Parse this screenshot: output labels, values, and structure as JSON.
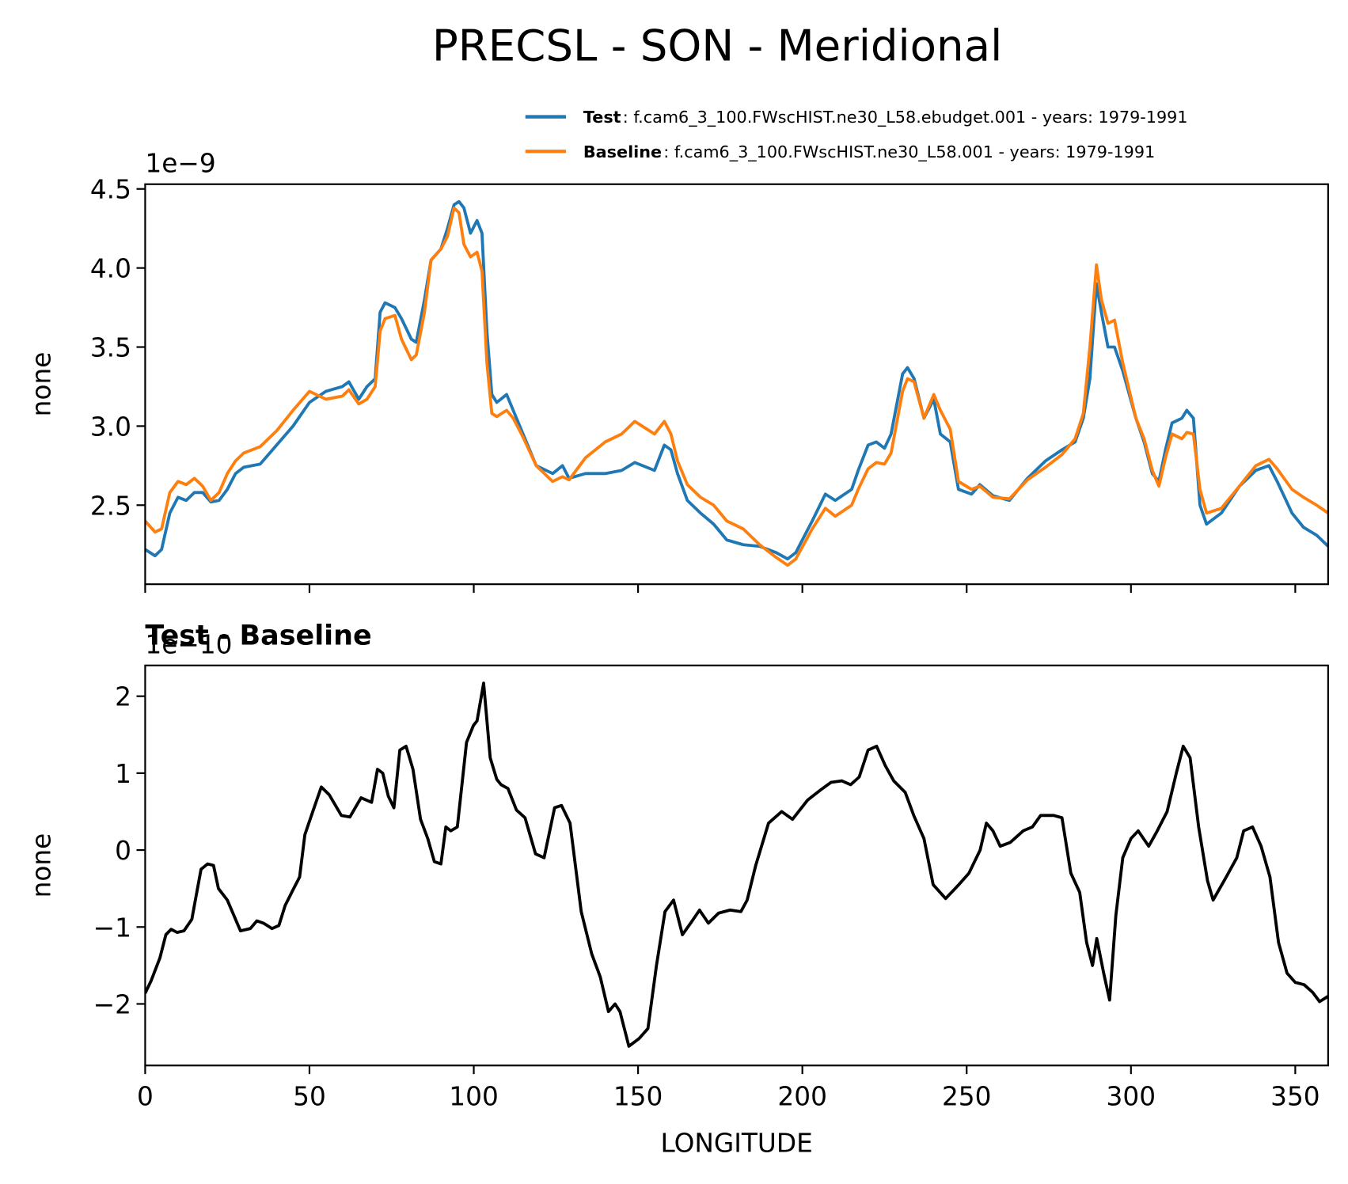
{
  "title": "PRECSL - SON - Meridional",
  "chart_data": [
    {
      "type": "line",
      "offset_text": "1e−9",
      "ylabel": "none",
      "xlim": [
        0,
        360
      ],
      "ylim": [
        2.0,
        4.53
      ],
      "xticks": [
        0,
        50,
        100,
        150,
        200,
        250,
        300,
        350
      ],
      "yticks": [
        2.5,
        {
          "value": 3,
          "label": "3.0"
        },
        3.5,
        {
          "value": 4,
          "label": "4.0"
        },
        4.5
      ],
      "x": [
        0,
        3,
        5,
        7.5,
        10,
        12.5,
        15,
        17.5,
        20,
        22.5,
        25,
        27.5,
        30,
        35,
        40,
        45,
        50,
        55,
        60,
        62,
        65,
        67.5,
        70,
        71.5,
        73,
        76,
        78,
        81,
        82.5,
        85,
        87,
        90,
        92,
        94,
        95.5,
        97,
        99,
        101,
        102.5,
        104,
        105.5,
        107,
        110,
        112,
        115,
        119,
        124,
        127,
        129,
        134,
        140,
        145,
        149,
        155,
        158,
        160,
        162,
        165,
        169,
        173,
        177,
        182,
        187,
        192,
        195.5,
        198,
        203,
        207,
        210,
        215,
        217,
        220,
        222.5,
        225,
        227,
        230.5,
        232,
        234,
        237,
        240,
        242,
        245,
        247.5,
        251.5,
        254,
        258,
        263,
        268.5,
        274,
        279,
        283,
        285.5,
        287.5,
        289.5,
        291,
        293,
        295,
        297.5,
        301.5,
        304,
        306.5,
        308.5,
        310.5,
        312.5,
        315.5,
        317,
        319,
        321,
        323,
        327.5,
        333,
        338,
        342,
        344.5,
        349,
        352.5,
        356.5,
        360
      ],
      "series": [
        {
          "name": "Test",
          "label": ": f.cam6_3_100.FWscHIST.ne30_L58.ebudget.001 - years: 1979-1991",
          "color": "#1f77b4",
          "values": [
            2.22,
            2.18,
            2.22,
            2.45,
            2.55,
            2.53,
            2.58,
            2.58,
            2.52,
            2.53,
            2.6,
            2.7,
            2.74,
            2.76,
            2.88,
            3.0,
            3.15,
            3.22,
            3.25,
            3.28,
            3.17,
            3.25,
            3.3,
            3.72,
            3.78,
            3.75,
            3.68,
            3.55,
            3.53,
            3.8,
            4.05,
            4.12,
            4.25,
            4.4,
            4.42,
            4.38,
            4.22,
            4.3,
            4.22,
            3.6,
            3.2,
            3.15,
            3.2,
            3.1,
            2.95,
            2.75,
            2.7,
            2.75,
            2.67,
            2.7,
            2.7,
            2.72,
            2.77,
            2.72,
            2.88,
            2.85,
            2.7,
            2.53,
            2.45,
            2.38,
            2.28,
            2.25,
            2.24,
            2.2,
            2.16,
            2.2,
            2.4,
            2.57,
            2.53,
            2.6,
            2.72,
            2.88,
            2.9,
            2.86,
            2.95,
            3.33,
            3.37,
            3.3,
            3.05,
            3.17,
            2.95,
            2.9,
            2.6,
            2.57,
            2.63,
            2.56,
            2.53,
            2.67,
            2.78,
            2.85,
            2.9,
            3.05,
            3.3,
            3.9,
            3.72,
            3.5,
            3.5,
            3.35,
            3.05,
            2.9,
            2.7,
            2.65,
            2.85,
            3.02,
            3.05,
            3.1,
            3.05,
            2.5,
            2.38,
            2.45,
            2.62,
            2.72,
            2.75,
            2.65,
            2.45,
            2.36,
            2.31,
            2.24
          ]
        },
        {
          "name": "Baseline",
          "label": ": f.cam6_3_100.FWscHIST.ne30_L58.001 - years: 1979-1991",
          "color": "#ff7f0e",
          "values": [
            2.4,
            2.33,
            2.35,
            2.58,
            2.65,
            2.63,
            2.67,
            2.62,
            2.53,
            2.58,
            2.7,
            2.78,
            2.83,
            2.87,
            2.97,
            3.1,
            3.22,
            3.17,
            3.19,
            3.23,
            3.14,
            3.17,
            3.25,
            3.6,
            3.68,
            3.7,
            3.55,
            3.42,
            3.45,
            3.72,
            4.05,
            4.12,
            4.2,
            4.38,
            4.35,
            4.15,
            4.07,
            4.1,
            3.98,
            3.4,
            3.08,
            3.06,
            3.1,
            3.05,
            2.93,
            2.75,
            2.65,
            2.68,
            2.66,
            2.8,
            2.9,
            2.95,
            3.03,
            2.95,
            3.03,
            2.95,
            2.78,
            2.63,
            2.55,
            2.5,
            2.4,
            2.35,
            2.25,
            2.17,
            2.12,
            2.16,
            2.35,
            2.48,
            2.43,
            2.5,
            2.6,
            2.73,
            2.77,
            2.76,
            2.83,
            3.22,
            3.3,
            3.28,
            3.05,
            3.2,
            3.1,
            2.98,
            2.65,
            2.6,
            2.62,
            2.55,
            2.54,
            2.66,
            2.74,
            2.82,
            2.92,
            3.08,
            3.5,
            4.02,
            3.8,
            3.65,
            3.67,
            3.4,
            3.05,
            2.92,
            2.72,
            2.62,
            2.8,
            2.95,
            2.92,
            2.96,
            2.95,
            2.6,
            2.45,
            2.48,
            2.62,
            2.75,
            2.79,
            2.73,
            2.6,
            2.55,
            2.5,
            2.45
          ]
        }
      ]
    },
    {
      "type": "line",
      "title": "Test - Baseline",
      "offset_text": "1e−10",
      "ylabel": "none",
      "xlabel": "LONGITUDE",
      "xlim": [
        0,
        360
      ],
      "ylim": [
        -2.8,
        2.4
      ],
      "xticks": [
        0,
        50,
        100,
        150,
        200,
        250,
        300,
        350
      ],
      "yticks": [
        {
          "value": -2,
          "label": "−2"
        },
        {
          "value": -1,
          "label": "−1"
        },
        0,
        1,
        2
      ],
      "x": [
        0,
        1.8,
        4.5,
        6.3,
        7.9,
        9.7,
        11.8,
        14.2,
        17,
        19,
        20.8,
        22.3,
        25,
        29,
        32,
        34,
        36,
        38.6,
        40.7,
        42.6,
        45.2,
        47,
        48.6,
        51,
        53.6,
        56,
        59.7,
        62.3,
        65.7,
        68.9,
        70.7,
        72.3,
        74,
        75.7,
        77.5,
        79.4,
        81.5,
        83.8,
        86,
        88,
        90,
        91.5,
        93,
        95,
        97.8,
        99.9,
        101,
        103,
        105,
        107,
        108.3,
        110.4,
        113,
        115.6,
        118.8,
        121.4,
        124.6,
        126.7,
        129.3,
        132.7,
        135.9,
        138.5,
        141,
        143,
        144.5,
        147.2,
        150.3,
        153,
        155.6,
        158.2,
        160.8,
        163.5,
        166,
        168.7,
        171.4,
        174.5,
        178,
        181.3,
        183.2,
        185.8,
        189.7,
        193.7,
        197,
        201.6,
        205.5,
        208.7,
        212,
        214.7,
        217.3,
        220,
        222.6,
        225.2,
        227.8,
        231.3,
        233.9,
        237,
        239.8,
        243.6,
        247.6,
        250.7,
        254.1,
        256,
        258,
        260.2,
        263.3,
        267.2,
        270,
        272.5,
        276.5,
        279,
        281.7,
        284.4,
        286.5,
        288.3,
        289.6,
        291.7,
        293.5,
        295.4,
        297.5,
        300,
        302.2,
        305.4,
        308,
        311,
        313.8,
        315.9,
        318,
        320.6,
        323.3,
        325,
        329,
        332.2,
        334.3,
        337,
        339.6,
        342.3,
        344.9,
        347.5,
        350,
        352.7,
        355.3,
        357.4,
        360
      ],
      "series": [
        {
          "color": "#000000",
          "values": [
            -1.86,
            -1.7,
            -1.4,
            -1.1,
            -1.03,
            -1.07,
            -1.05,
            -0.9,
            -0.25,
            -0.18,
            -0.2,
            -0.5,
            -0.65,
            -1.05,
            -1.02,
            -0.92,
            -0.95,
            -1.02,
            -0.98,
            -0.72,
            -0.5,
            -0.35,
            0.2,
            0.5,
            0.82,
            0.72,
            0.45,
            0.43,
            0.68,
            0.62,
            1.05,
            1.0,
            0.7,
            0.55,
            1.3,
            1.35,
            1.05,
            0.4,
            0.15,
            -0.15,
            -0.18,
            0.3,
            0.25,
            0.3,
            1.4,
            1.62,
            1.68,
            2.17,
            1.2,
            0.92,
            0.85,
            0.8,
            0.52,
            0.42,
            -0.05,
            -0.1,
            0.55,
            0.58,
            0.35,
            -0.8,
            -1.35,
            -1.65,
            -2.1,
            -2.0,
            -2.1,
            -2.55,
            -2.45,
            -2.32,
            -1.5,
            -0.8,
            -0.65,
            -1.1,
            -0.95,
            -0.78,
            -0.95,
            -0.82,
            -0.78,
            -0.8,
            -0.65,
            -0.2,
            0.35,
            0.5,
            0.4,
            0.65,
            0.78,
            0.88,
            0.9,
            0.85,
            0.95,
            1.3,
            1.35,
            1.1,
            0.9,
            0.75,
            0.45,
            0.15,
            -0.45,
            -0.63,
            -0.45,
            -0.3,
            0.0,
            0.35,
            0.25,
            0.05,
            0.1,
            0.25,
            0.3,
            0.45,
            0.45,
            0.42,
            -0.3,
            -0.55,
            -1.2,
            -1.5,
            -1.15,
            -1.6,
            -1.95,
            -0.85,
            -0.1,
            0.15,
            0.25,
            0.05,
            0.25,
            0.5,
            1.0,
            1.35,
            1.2,
            0.3,
            -0.4,
            -0.65,
            -0.35,
            -0.1,
            0.25,
            0.3,
            0.05,
            -0.35,
            -1.2,
            -1.6,
            -1.72,
            -1.75,
            -1.85,
            -1.97,
            -1.9
          ]
        }
      ]
    }
  ]
}
